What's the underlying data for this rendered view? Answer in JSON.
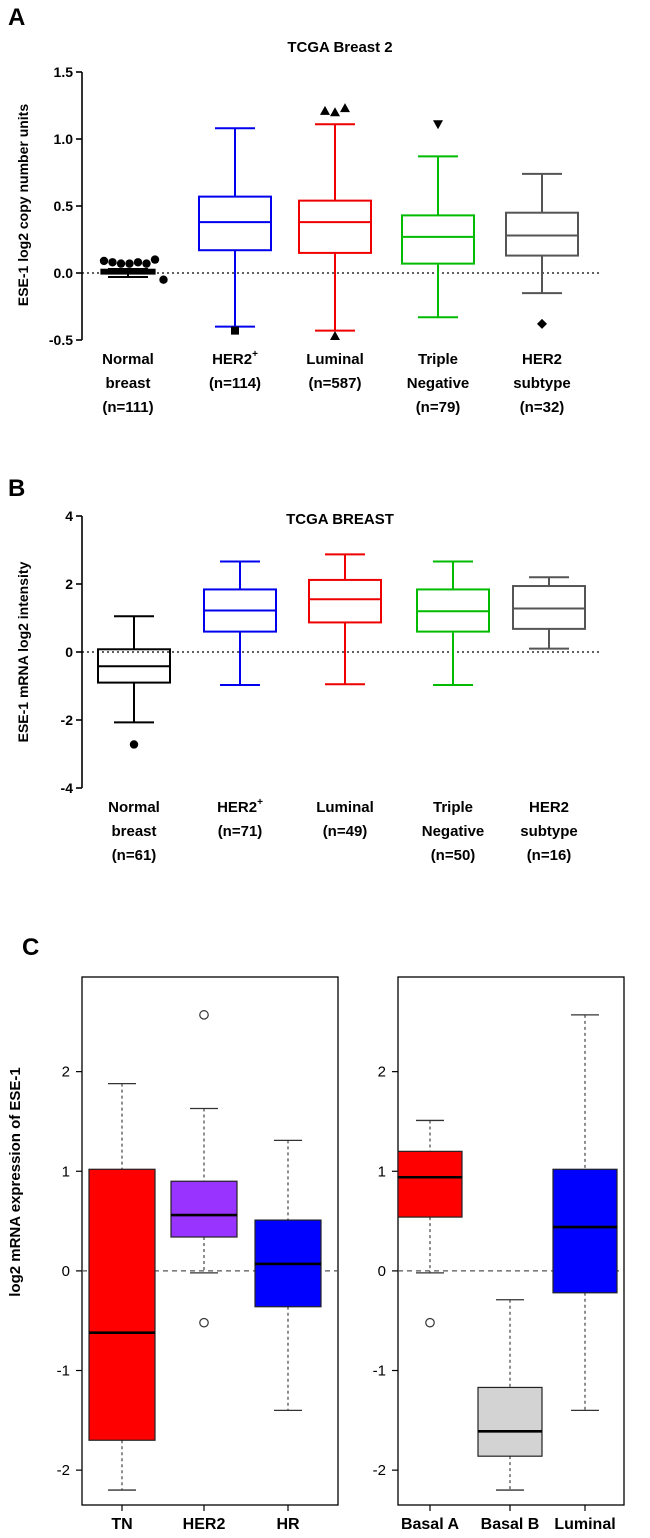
{
  "panel_labels": {
    "a": "A",
    "b": "B",
    "c": "C"
  },
  "chart_data": [
    {
      "id": "A",
      "type": "box",
      "title": "TCGA Breast 2",
      "ylabel": "ESE-1 log2 copy number units",
      "ylim": [
        -0.5,
        1.5
      ],
      "yticks": [
        "1.5",
        "1.0",
        "0.5",
        "0.0",
        "-0.5"
      ],
      "ytick_values": [
        1.5,
        1.0,
        0.5,
        0.0,
        -0.5
      ],
      "reference_line": 0,
      "categories": [
        {
          "line1": "Normal",
          "line1_sup": "",
          "line2": "breast",
          "line3": "(n=111)",
          "color": "#000000",
          "whisker_low": -0.03,
          "q1": 0.0,
          "median": 0.01,
          "q3": 0.02,
          "whisker_high": 0.03,
          "outliers": [
            {
              "y": 0.09,
              "marker": "circle"
            },
            {
              "y": 0.08,
              "marker": "circle"
            },
            {
              "y": 0.07,
              "marker": "circle"
            },
            {
              "y": 0.07,
              "marker": "circle"
            },
            {
              "y": 0.08,
              "marker": "circle"
            },
            {
              "y": 0.07,
              "marker": "circle"
            },
            {
              "y": 0.1,
              "marker": "circle"
            },
            {
              "y": -0.05,
              "marker": "circle"
            }
          ]
        },
        {
          "line1": "HER2",
          "line1_sup": "+",
          "line2": "(n=114)",
          "line3": "",
          "color": "#0000ee",
          "whisker_low": -0.4,
          "q1": 0.17,
          "median": 0.38,
          "q3": 0.57,
          "whisker_high": 1.08,
          "outliers": [
            {
              "y": -0.43,
              "marker": "square"
            }
          ]
        },
        {
          "line1": "Luminal",
          "line1_sup": "",
          "line2": "(n=587)",
          "line3": "",
          "color": "#ee0000",
          "whisker_low": -0.43,
          "q1": 0.15,
          "median": 0.38,
          "q3": 0.54,
          "whisker_high": 1.11,
          "outliers": [
            {
              "y": 1.21,
              "marker": "triangle-up"
            },
            {
              "y": 1.2,
              "marker": "triangle-up"
            },
            {
              "y": 1.23,
              "marker": "triangle-up"
            },
            {
              "y": -0.47,
              "marker": "triangle-up"
            }
          ]
        },
        {
          "line1": "Triple",
          "line1_sup": "",
          "line2": "Negative",
          "line3": "(n=79)",
          "color": "#00bb00",
          "whisker_low": -0.33,
          "q1": 0.07,
          "median": 0.27,
          "q3": 0.43,
          "whisker_high": 0.87,
          "outliers": [
            {
              "y": 1.11,
              "marker": "triangle-down"
            }
          ]
        },
        {
          "line1": "HER2",
          "line1_sup": "",
          "line2": "subtype",
          "line3": "(n=32)",
          "color": "#555555",
          "whisker_low": -0.15,
          "q1": 0.13,
          "median": 0.28,
          "q3": 0.45,
          "whisker_high": 0.74,
          "outliers": [
            {
              "y": -0.38,
              "marker": "diamond"
            }
          ]
        }
      ]
    },
    {
      "id": "B",
      "type": "box",
      "title": "TCGA BREAST",
      "ylabel": "ESE-1 mRNA log2 intensity",
      "ylim": [
        -4,
        4
      ],
      "yticks": [
        "4",
        "2",
        "0",
        "-2",
        "-4"
      ],
      "ytick_values": [
        4,
        2,
        0,
        -2,
        -4
      ],
      "reference_line": 0,
      "categories": [
        {
          "line1": "Normal",
          "line1_sup": "",
          "line2": "breast",
          "line3": "(n=61)",
          "color": "#000000",
          "whisker_low": -2.07,
          "q1": -0.9,
          "median": -0.42,
          "q3": 0.08,
          "whisker_high": 1.05,
          "outliers": [
            {
              "y": -2.72,
              "marker": "circle"
            }
          ]
        },
        {
          "line1": "HER2",
          "line1_sup": "+",
          "line2": "(n=71)",
          "line3": "",
          "color": "#0000ee",
          "whisker_low": -0.97,
          "q1": 0.6,
          "median": 1.22,
          "q3": 1.84,
          "whisker_high": 2.66,
          "outliers": []
        },
        {
          "line1": "Luminal",
          "line1_sup": "",
          "line2": "(n=49)",
          "line3": "",
          "color": "#ee0000",
          "whisker_low": -0.95,
          "q1": 0.87,
          "median": 1.55,
          "q3": 2.12,
          "whisker_high": 2.87,
          "outliers": []
        },
        {
          "line1": "Triple",
          "line1_sup": "",
          "line2": "Negative",
          "line3": "(n=50)",
          "color": "#00bb00",
          "whisker_low": -0.97,
          "q1": 0.6,
          "median": 1.2,
          "q3": 1.84,
          "whisker_high": 2.66,
          "outliers": []
        },
        {
          "line1": "HER2",
          "line1_sup": "",
          "line2": "subtype",
          "line3": "(n=16)",
          "color": "#555555",
          "whisker_low": 0.1,
          "q1": 0.68,
          "median": 1.28,
          "q3": 1.94,
          "whisker_high": 2.2,
          "outliers": []
        }
      ]
    },
    {
      "id": "C-left",
      "type": "box",
      "title": "",
      "ylabel": "log2 mRNA expression of ESE-1",
      "ylim": [
        -2.35,
        2.95
      ],
      "yticks": [
        "2",
        "1",
        "0",
        "-1",
        "-2"
      ],
      "ytick_values": [
        2,
        1,
        0,
        -1,
        -2
      ],
      "reference_line": 0,
      "categories": [
        {
          "label": "TN",
          "color": "#ff0000",
          "whisker_low": -2.2,
          "q1": -1.7,
          "median": -0.62,
          "q3": 1.02,
          "whisker_high": 1.88,
          "outliers": []
        },
        {
          "label": "HER2",
          "color": "#9933ff",
          "whisker_low": -0.02,
          "q1": 0.34,
          "median": 0.56,
          "q3": 0.9,
          "whisker_high": 1.63,
          "outliers": [
            {
              "y": 2.57,
              "marker": "open-circle"
            },
            {
              "y": -0.52,
              "marker": "open-circle"
            }
          ]
        },
        {
          "label": "HR",
          "color": "#0000ff",
          "whisker_low": -1.4,
          "q1": -0.36,
          "median": 0.07,
          "q3": 0.51,
          "whisker_high": 1.31,
          "outliers": []
        }
      ]
    },
    {
      "id": "C-right",
      "type": "box",
      "title": "",
      "ylabel": "",
      "ylim": [
        -2.35,
        2.95
      ],
      "yticks": [
        "2",
        "1",
        "0",
        "-1",
        "-2"
      ],
      "ytick_values": [
        2,
        1,
        0,
        -1,
        -2
      ],
      "reference_line": 0,
      "categories": [
        {
          "label": "Basal A",
          "color": "#ff0000",
          "whisker_low": -0.02,
          "q1": 0.54,
          "median": 0.94,
          "q3": 1.2,
          "whisker_high": 1.51,
          "outliers": [
            {
              "y": -0.52,
              "marker": "open-circle"
            }
          ]
        },
        {
          "label": "Basal B",
          "color": "#d3d3d3",
          "whisker_low": -2.2,
          "q1": -1.86,
          "median": -1.61,
          "q3": -1.17,
          "whisker_high": -0.29,
          "outliers": []
        },
        {
          "label": "Luminal",
          "color": "#0000ff",
          "whisker_low": -1.4,
          "q1": -0.22,
          "median": 0.44,
          "q3": 1.02,
          "whisker_high": 2.57,
          "outliers": []
        }
      ]
    }
  ]
}
